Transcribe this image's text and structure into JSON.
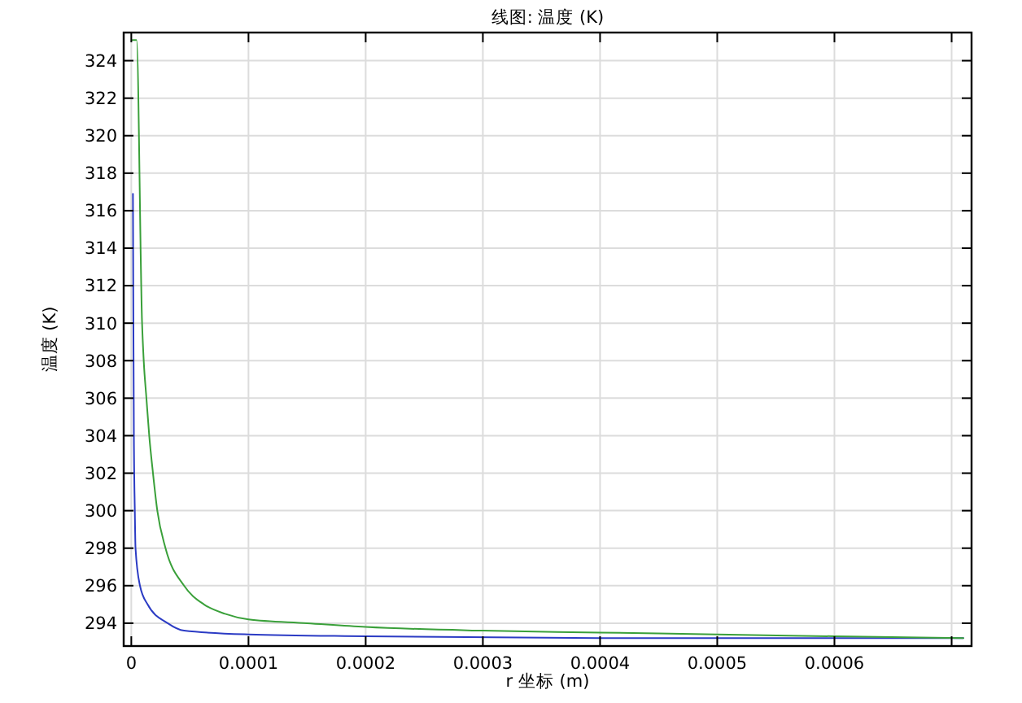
{
  "chart_data": {
    "type": "line",
    "title": "线图: 温度 (K)",
    "xlabel": "r 坐标 (m)",
    "ylabel": "温度 (K)",
    "xlim": [
      -6.5e-06,
      0.000717
    ],
    "xticks": [
      0,
      0.0001,
      0.0002,
      0.0003,
      0.0004,
      0.0005,
      0.0006,
      {
        "value": 0.0007,
        "label": null
      }
    ],
    "ylim": [
      292.78,
      325.5
    ],
    "yticks": [
      294,
      296,
      298,
      300,
      302,
      304,
      306,
      308,
      310,
      312,
      314,
      316,
      318,
      320,
      322,
      324
    ],
    "grid": true,
    "marker": "none",
    "line_style": "solid",
    "series": [
      {
        "color": "#2b3bc4",
        "x": [
          1.4e-06,
          1.8e-06,
          2.2e-06,
          3e-06,
          3.6e-06,
          7.4e-06,
          1.39e-05,
          3.1e-05,
          4.5e-05,
          0.0001,
          0.0002,
          0.0004,
          0.0006,
          0.00071
        ],
        "values": [
          316.9,
          310,
          304,
          300,
          298,
          296,
          295,
          294,
          293.6,
          293.4,
          293.3,
          293.2,
          293.2,
          293.2
        ]
      },
      {
        "color": "#3aa03a",
        "x": [
          1e-06,
          4.5e-06,
          9.2e-06,
          1.06e-05,
          1.29e-05,
          1.53e-05,
          1.85e-05,
          2.22e-05,
          2.92e-05,
          4.5e-05,
          6.2e-05,
          8e-05,
          0.0001,
          0.00015,
          0.0002,
          0.0003,
          0.0004,
          0.0005,
          0.0006,
          0.00071
        ],
        "values": [
          325.1,
          325.1,
          310,
          308,
          306,
          304,
          302,
          300,
          298,
          296,
          295,
          294.5,
          294.2,
          294,
          293.8,
          293.6,
          293.5,
          293.4,
          293.3,
          293.2
        ]
      }
    ]
  }
}
